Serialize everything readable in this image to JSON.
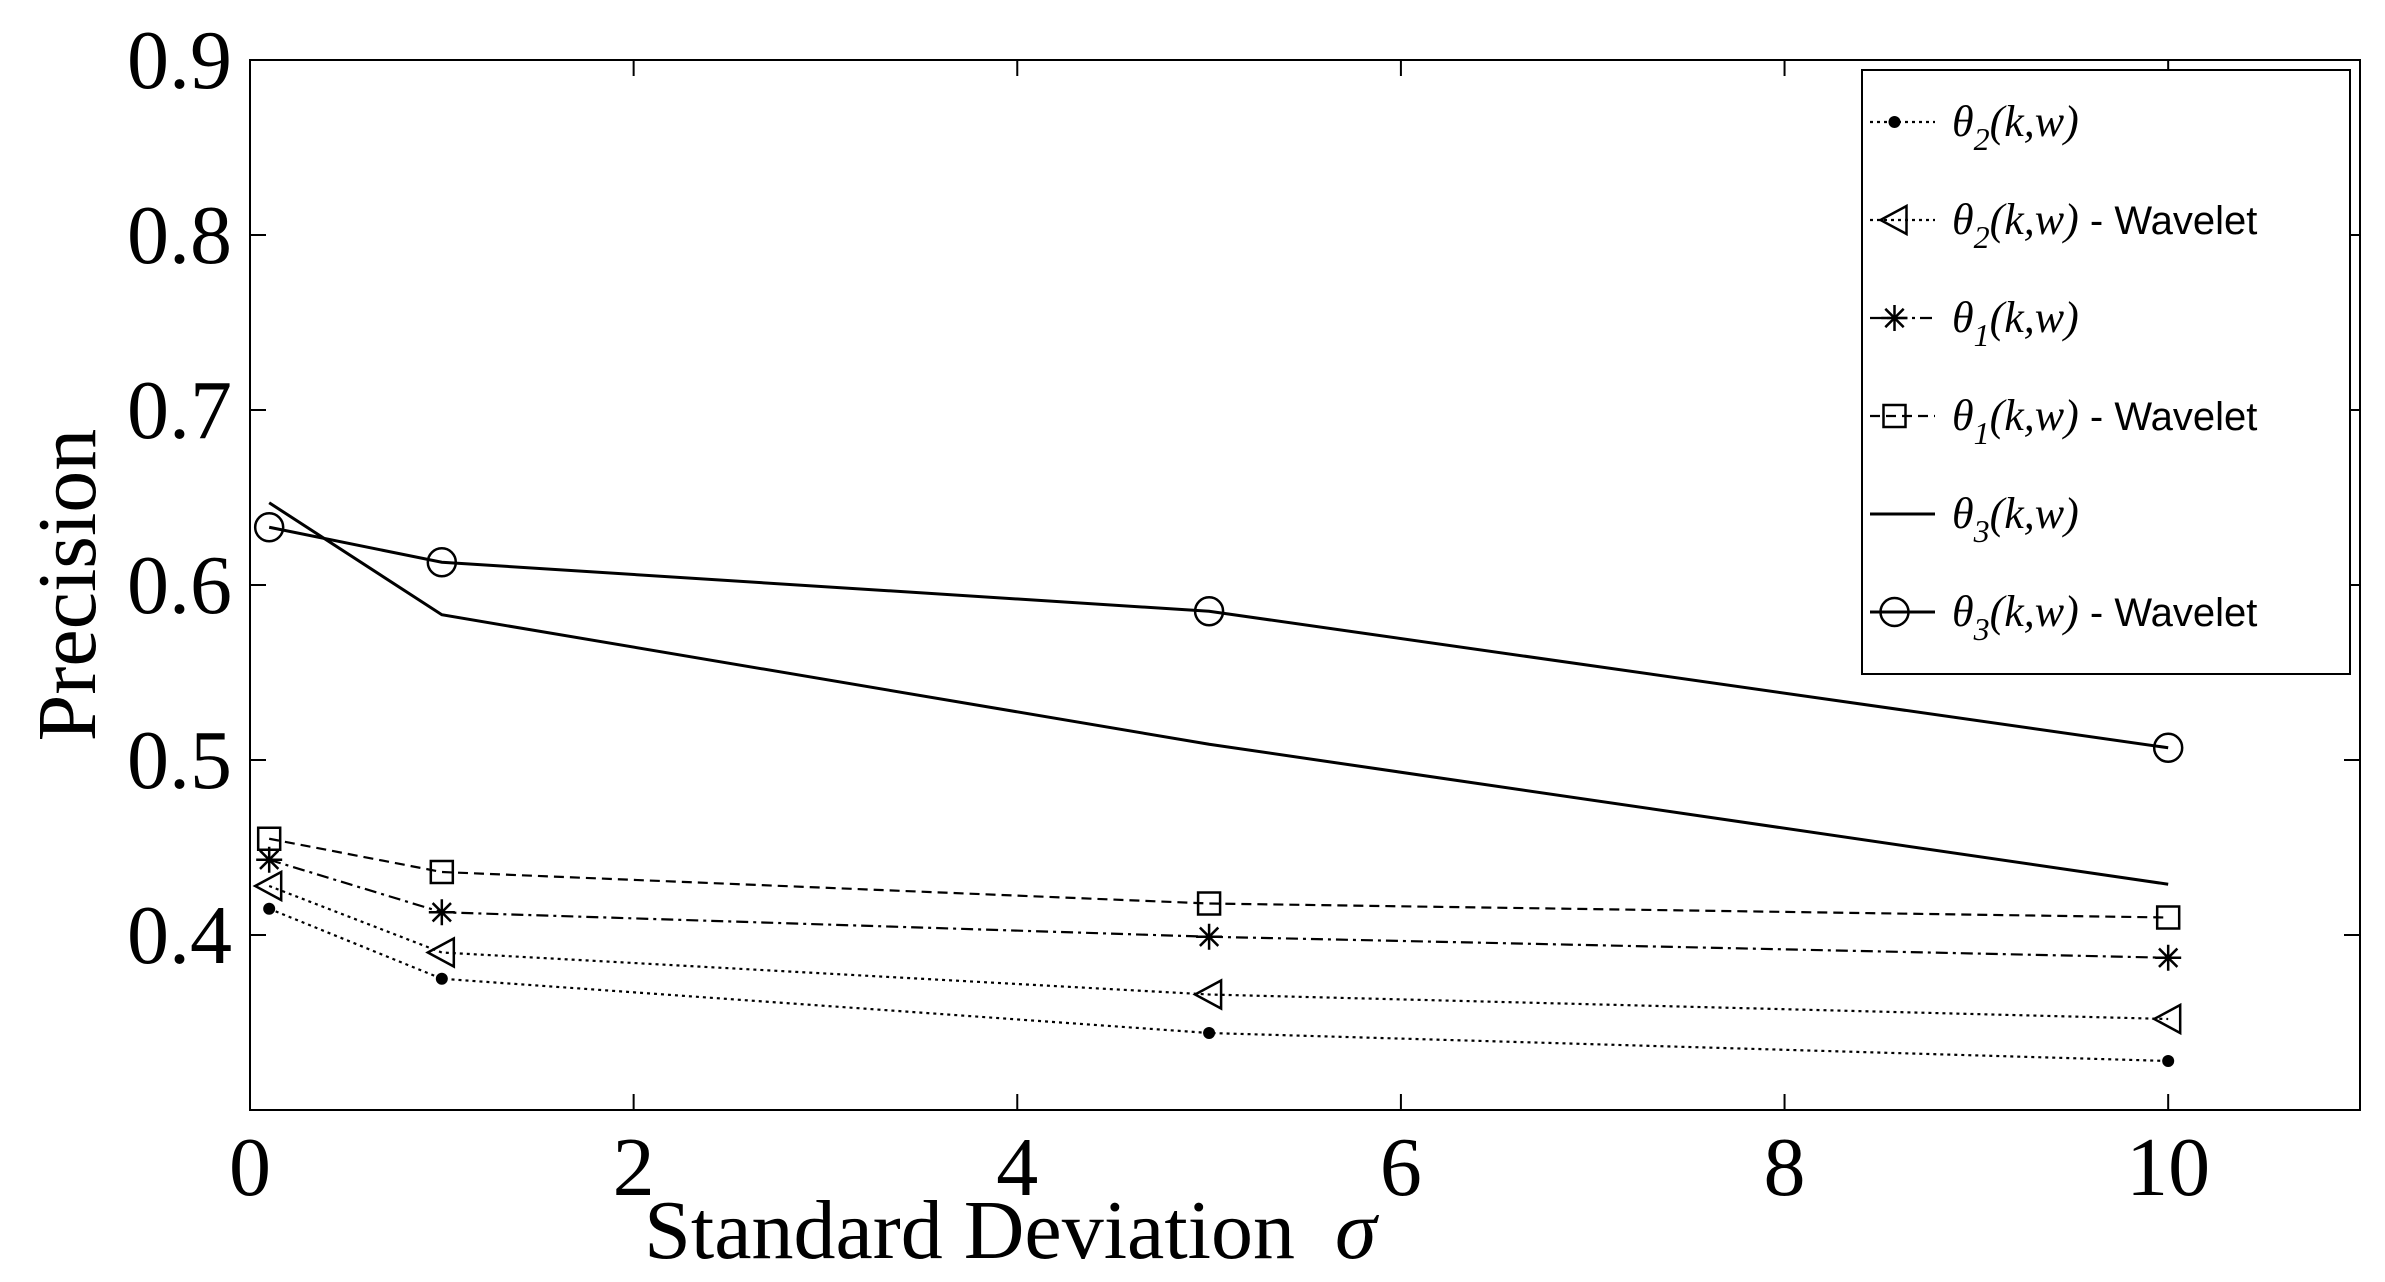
{
  "chart_data": {
    "type": "line",
    "xlabel": "Standard Deviation",
    "xlabel_symbol": "σ",
    "ylabel": "Precision",
    "xlim": [
      0,
      11
    ],
    "ylim": [
      0.3,
      0.9
    ],
    "xticks": [
      0,
      2,
      4,
      6,
      8,
      10
    ],
    "xtick_labels": [
      "0",
      "2",
      "4",
      "6",
      "8",
      "10"
    ],
    "yticks": [
      0.4,
      0.5,
      0.6,
      0.7,
      0.8,
      0.9
    ],
    "ytick_labels": [
      "0.4",
      "0.5",
      "0.6",
      "0.7",
      "0.8",
      "0.9"
    ],
    "grid": false,
    "legend_position": "top-right",
    "x": [
      0.1,
      1,
      5,
      10
    ],
    "series": [
      {
        "name": "θ2(k,w)",
        "name_theta": "θ",
        "name_sub": "2",
        "name_args": "(k,w)",
        "name_suffix": "",
        "values": [
          0.415,
          0.375,
          0.344,
          0.328
        ],
        "marker": "dot",
        "dash": "dotted",
        "color": "#000000"
      },
      {
        "name": "θ2(k,w) - Wavelet",
        "name_theta": "θ",
        "name_sub": "2",
        "name_args": "(k,w)",
        "name_suffix": " - Wavelet",
        "values": [
          0.428,
          0.39,
          0.366,
          0.352
        ],
        "marker": "triangle-left",
        "dash": "dotted",
        "color": "#000000"
      },
      {
        "name": "θ1(k,w)",
        "name_theta": "θ",
        "name_sub": "1",
        "name_args": "(k,w)",
        "name_suffix": "",
        "values": [
          0.443,
          0.413,
          0.399,
          0.387
        ],
        "marker": "asterisk",
        "dash": "dashdot",
        "color": "#000000"
      },
      {
        "name": "θ1(k,w) - Wavelet",
        "name_theta": "θ",
        "name_sub": "1",
        "name_args": "(k,w)",
        "name_suffix": " - Wavelet",
        "values": [
          0.455,
          0.436,
          0.418,
          0.41
        ],
        "marker": "square",
        "dash": "dashed",
        "color": "#000000"
      },
      {
        "name": "θ3(k,w)",
        "name_theta": "θ",
        "name_sub": "3",
        "name_args": "(k,w)",
        "name_suffix": "",
        "values": [
          0.647,
          0.583,
          0.509,
          0.429
        ],
        "marker": "none",
        "dash": "solid",
        "color": "#000000"
      },
      {
        "name": "θ3(k,w) - Wavelet",
        "name_theta": "θ",
        "name_sub": "3",
        "name_args": "(k,w)",
        "name_suffix": " - Wavelet",
        "values": [
          0.633,
          0.613,
          0.585,
          0.507
        ],
        "marker": "circle",
        "dash": "solid",
        "color": "#000000"
      }
    ]
  }
}
